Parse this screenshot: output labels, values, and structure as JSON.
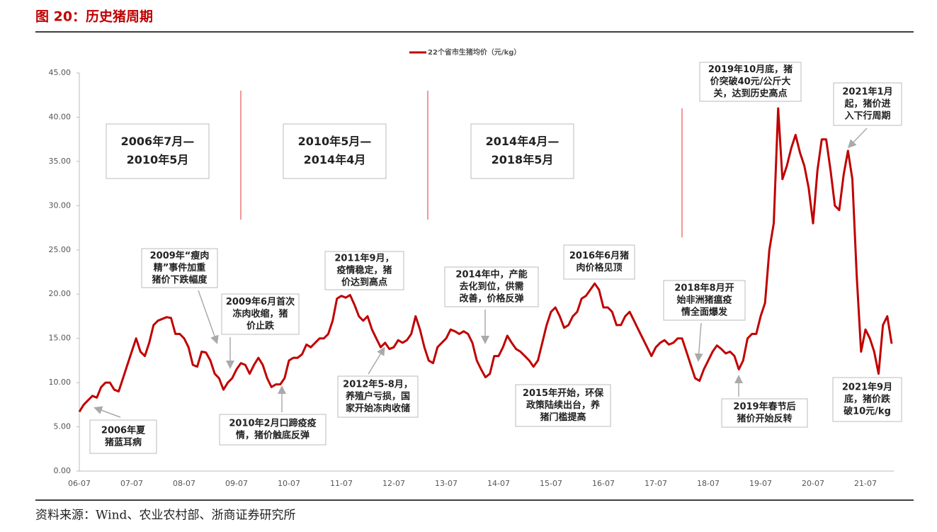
{
  "chart_data": {
    "type": "line",
    "title": "图 20：历史猪周期",
    "source": "资料来源：Wind、农业农村部、浙商证券研究所",
    "categories": [
      "06-07",
      null,
      null,
      null,
      null,
      null,
      null,
      null,
      null,
      null,
      null,
      null,
      "07-07",
      null,
      null,
      null,
      null,
      null,
      null,
      null,
      null,
      null,
      null,
      null,
      "08-07",
      null,
      null,
      null,
      null,
      null,
      null,
      null,
      null,
      null,
      null,
      null,
      "09-07",
      null,
      null,
      null,
      null,
      null,
      null,
      null,
      null,
      null,
      null,
      null,
      "10-07",
      null,
      null,
      null,
      null,
      null,
      null,
      null,
      null,
      null,
      null,
      null,
      "11-07",
      null,
      null,
      null,
      null,
      null,
      null,
      null,
      null,
      null,
      null,
      null,
      "12-07",
      null,
      null,
      null,
      null,
      null,
      null,
      null,
      null,
      null,
      null,
      null,
      "13-07",
      null,
      null,
      null,
      null,
      null,
      null,
      null,
      null,
      null,
      null,
      null,
      "14-07",
      null,
      null,
      null,
      null,
      null,
      null,
      null,
      null,
      null,
      null,
      null,
      "15-07",
      null,
      null,
      null,
      null,
      null,
      null,
      null,
      null,
      null,
      null,
      null,
      "16-07",
      null,
      null,
      null,
      null,
      null,
      null,
      null,
      null,
      null,
      null,
      null,
      "17-07",
      null,
      null,
      null,
      null,
      null,
      null,
      null,
      null,
      null,
      null,
      null,
      "18-07",
      null,
      null,
      null,
      null,
      null,
      null,
      null,
      null,
      null,
      null,
      null,
      "19-07",
      null,
      null,
      null,
      null,
      null,
      null,
      null,
      null,
      null,
      null,
      null,
      "20-07",
      null,
      null,
      null,
      null,
      null,
      null,
      null,
      null,
      null,
      null,
      null,
      "21-07",
      null,
      null,
      null,
      null,
      null,
      null
    ],
    "series": [
      {
        "name": "22个省市生猪均价（元/kg）",
        "color": "#c00000",
        "values": [
          6.7,
          7.5,
          8.0,
          8.5,
          8.3,
          9.5,
          10.0,
          10.0,
          9.2,
          9.0,
          10.5,
          12.0,
          13.5,
          15.0,
          13.5,
          13.0,
          14.5,
          16.5,
          17.0,
          17.2,
          17.4,
          17.3,
          15.5,
          15.5,
          15.0,
          14.0,
          12.0,
          11.8,
          13.5,
          13.4,
          12.5,
          11.0,
          10.5,
          9.2,
          10.0,
          10.5,
          11.5,
          12.2,
          12.0,
          11.0,
          12.0,
          12.8,
          12.0,
          10.5,
          9.5,
          9.8,
          9.8,
          10.5,
          12.5,
          12.8,
          12.8,
          13.2,
          14.3,
          14.0,
          14.5,
          15.0,
          15.0,
          15.5,
          17.0,
          19.5,
          19.8,
          19.6,
          19.9,
          18.8,
          17.5,
          17.0,
          17.5,
          16.0,
          15.0,
          14.0,
          14.5,
          13.8,
          14.0,
          14.8,
          14.5,
          14.8,
          15.5,
          17.5,
          16.0,
          14.0,
          12.5,
          12.2,
          14.0,
          14.5,
          15.0,
          16.0,
          15.8,
          15.5,
          15.8,
          15.5,
          14.5,
          12.5,
          11.5,
          10.6,
          11.0,
          13.0,
          13.0,
          14.0,
          15.3,
          14.5,
          13.8,
          13.5,
          13.0,
          12.5,
          11.8,
          12.5,
          14.5,
          16.5,
          18.0,
          18.5,
          17.5,
          16.2,
          16.5,
          17.5,
          18.0,
          19.5,
          19.8,
          20.5,
          21.2,
          20.5,
          18.5,
          18.5,
          18.0,
          16.5,
          16.5,
          17.5,
          18.0,
          17.0,
          16.0,
          15.0,
          14.0,
          13.0,
          14.0,
          14.5,
          14.8,
          14.3,
          14.5,
          15.0,
          15.0,
          13.5,
          12.0,
          10.5,
          10.2,
          11.5,
          12.5,
          13.5,
          14.2,
          13.8,
          13.3,
          13.5,
          13.0,
          11.5,
          12.5,
          15.0,
          15.5,
          15.5,
          17.5,
          19.0,
          25.0,
          28.0,
          41.0,
          33.0,
          34.5,
          36.5,
          38.0,
          36.0,
          34.5,
          32.0,
          28.0,
          34.0,
          37.5,
          37.5,
          34.0,
          30.0,
          29.5,
          33.5,
          36.2,
          33.0,
          22.0,
          13.5,
          16.0,
          15.0,
          13.5,
          11.0,
          16.5,
          17.5,
          14.4
        ]
      }
    ],
    "ylim": [
      0,
      45
    ],
    "yticks": [
      {
        "value": 0,
        "label": "0.00"
      },
      {
        "value": 5,
        "label": "5.00"
      },
      {
        "value": 10,
        "label": "10.00"
      },
      {
        "value": 15,
        "label": "15.00"
      },
      {
        "value": 20,
        "label": "20.00"
      },
      {
        "value": 25,
        "label": "25.00"
      },
      {
        "value": 30,
        "label": "30.00"
      },
      {
        "value": 35,
        "label": "35.00"
      },
      {
        "value": 40,
        "label": "40.00"
      },
      {
        "value": 45,
        "label": "45.00"
      }
    ],
    "legend": "top",
    "periods": [
      {
        "text": [
          "2006年7月—",
          "2010年5月"
        ]
      },
      {
        "text": [
          "2010年5月—",
          "2014年4月"
        ]
      },
      {
        "text": [
          "2014年4月—",
          "2018年5月"
        ]
      }
    ],
    "annotations": [
      {
        "text": [
          "2009年“瘦肉",
          "精”事件加重",
          "猪价下跌幅度"
        ]
      },
      {
        "text": [
          "2009年6月首次",
          "冻肉收缩，猪",
          "价止跌"
        ]
      },
      {
        "text": [
          "2011年9月，",
          "疫情稳定，猪",
          "价达到高点"
        ]
      },
      {
        "text": [
          "2014年中，产能",
          "去化到位，供需",
          "改善，价格反弹"
        ]
      },
      {
        "text": [
          "2016年6月猪",
          "肉价格见顶"
        ]
      },
      {
        "text": [
          "2018年8月开",
          "始非洲猪瘟疫",
          "情全面爆发"
        ]
      },
      {
        "text": [
          "2019年10月底，猪",
          "价突破40元/公斤大",
          "关，达到历史高点"
        ]
      },
      {
        "text": [
          "2021年1月",
          "起，猪价进",
          "入下行周期"
        ]
      },
      {
        "text": [
          "2006年夏",
          "猪蓝耳病"
        ]
      },
      {
        "text": [
          "2010年2月口蹄疫疫",
          "情，猪价触底反弹"
        ]
      },
      {
        "text": [
          "2012年5-8月，",
          "养殖户亏损，国",
          "家开始冻肉收储"
        ]
      },
      {
        "text": [
          "2015年开始，环保",
          "政策陆续出台，养",
          "猪门槛提高"
        ]
      },
      {
        "text": [
          "2019年春节后",
          "猪价开始反转"
        ]
      },
      {
        "text": [
          "2021年9月",
          "底，猪价跌",
          "破10元/kg"
        ]
      }
    ]
  }
}
